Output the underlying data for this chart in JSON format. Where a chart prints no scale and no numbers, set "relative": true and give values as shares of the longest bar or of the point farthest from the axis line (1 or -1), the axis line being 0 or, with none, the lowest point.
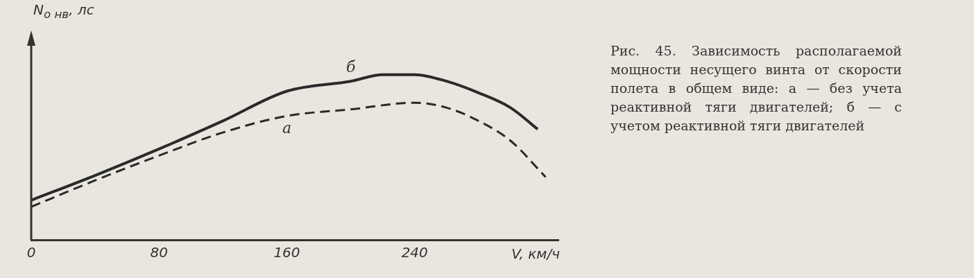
{
  "chart_data": {
    "type": "line",
    "relative": true,
    "xlabel": "V, км/ч",
    "ylabel": "N$_{о нв}$, лс",
    "x": [
      0,
      40,
      80,
      120,
      160,
      200,
      220,
      240,
      260,
      280,
      300,
      317
    ],
    "xlim": [
      0,
      330
    ],
    "xticks": [
      0,
      80,
      160,
      240
    ],
    "grid": false,
    "legend": false,
    "marker": "none",
    "series": [
      {
        "name": "б",
        "color": "#2a2a2a",
        "line_style": "solid",
        "values": [
          0.24,
          0.39,
          0.55,
          0.72,
          0.9,
          0.96,
          1.0,
          1.0,
          0.96,
          0.89,
          0.8,
          0.67
        ]
      },
      {
        "name": "а",
        "color": "#2a2a2a",
        "line_style": "dashed",
        "x": [
          0,
          40,
          80,
          120,
          160,
          200,
          240,
          260,
          280,
          300,
          322
        ],
        "values": [
          0.2,
          0.36,
          0.51,
          0.65,
          0.75,
          0.79,
          0.83,
          0.8,
          0.72,
          0.6,
          0.38
        ]
      }
    ],
    "annotations": [
      "Рис. 45. Зависимость располагаемой мощности несущего винта от скорости полета в общем виде: а — без учета реактивной тяги двигателей; б — с учетом реактивной тяги двигателей"
    ]
  }
}
